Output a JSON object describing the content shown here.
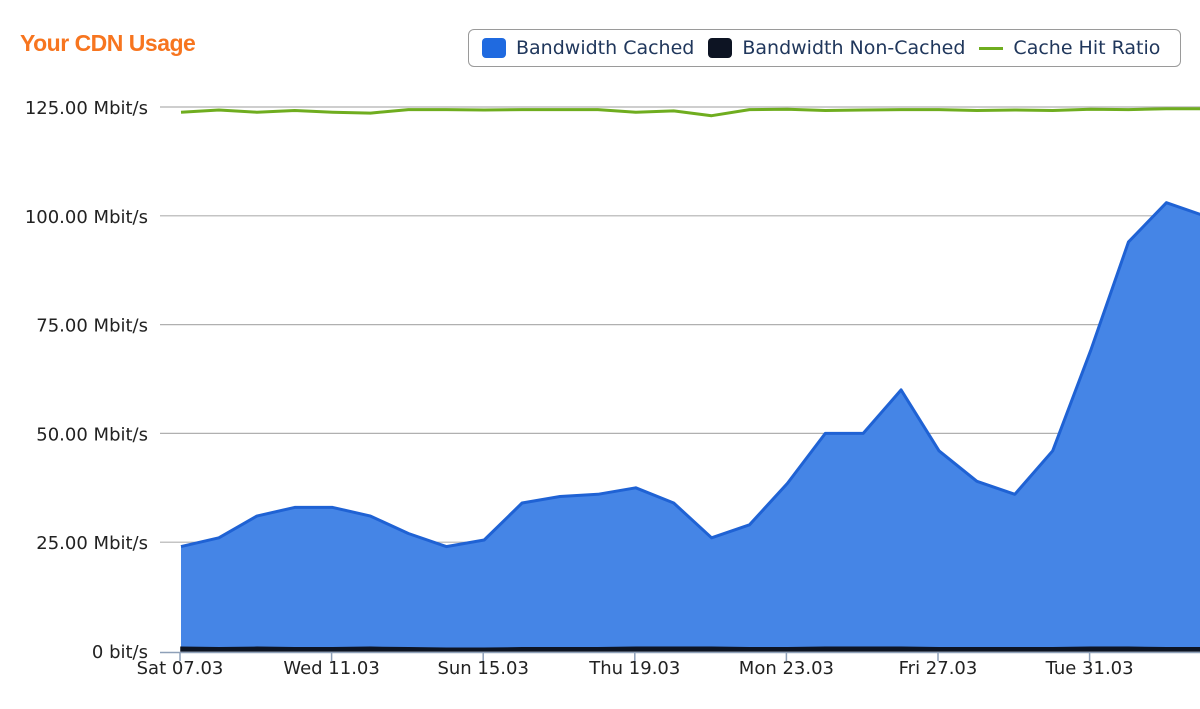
{
  "title": "Your CDN Usage",
  "colors": {
    "title": "#f7751f",
    "cached_fill": "#4585e6",
    "cached_line": "#1f62d4",
    "noncached": "#0d1423",
    "hit_ratio": "#6fad1f",
    "grid": "#b0b0b0"
  },
  "legend": [
    {
      "label": "Bandwidth Cached",
      "kind": "box",
      "color": "#1f6ae0"
    },
    {
      "label": "Bandwidth Non-Cached",
      "kind": "box",
      "color": "#0d1423"
    },
    {
      "label": "Cache Hit Ratio",
      "kind": "line",
      "color": "#6fad1f"
    }
  ],
  "chart_data": {
    "type": "area",
    "title": "Your CDN Usage",
    "y_unit": "Mbit/s",
    "ylim": [
      0,
      125
    ],
    "y_ticks": [
      0,
      25,
      50,
      75,
      100,
      125
    ],
    "y_tick_labels": [
      "0 bit/s",
      "25.00 Mbit/s",
      "50.00 Mbit/s",
      "75.00 Mbit/s",
      "100.00 Mbit/s",
      "125.00 Mbit/s"
    ],
    "x_tick_labels": [
      "Sat 07.03",
      "Wed 11.03",
      "Sun 15.03",
      "Thu 19.03",
      "Mon 23.03",
      "Fri 27.03",
      "Tue 31.03"
    ],
    "x_tick_day_index": [
      0,
      4,
      8,
      12,
      16,
      20,
      24
    ],
    "x": [
      "07.03",
      "08.03",
      "09.03",
      "10.03",
      "11.03",
      "12.03",
      "13.03",
      "14.03",
      "15.03",
      "16.03",
      "17.03",
      "18.03",
      "19.03",
      "20.03",
      "21.03",
      "22.03",
      "23.03",
      "24.03",
      "25.03",
      "26.03",
      "27.03",
      "28.03",
      "29.03",
      "30.03",
      "31.03",
      "01.04",
      "02.04",
      "03.04"
    ],
    "grid": true,
    "legend_position": "top-right",
    "series": [
      {
        "name": "Bandwidth Cached",
        "type": "area",
        "values": [
          24.0,
          26.0,
          31.0,
          33.0,
          33.0,
          31.0,
          27.0,
          24.0,
          25.5,
          34.0,
          35.5,
          36.0,
          37.5,
          34.0,
          26.0,
          29.0,
          38.5,
          50.0,
          50.0,
          60.0,
          46.0,
          39.0,
          36.0,
          46.0,
          69.0,
          94.0,
          103.0,
          100.0
        ]
      },
      {
        "name": "Bandwidth Non-Cached",
        "type": "area",
        "values": [
          0.5,
          0.4,
          0.5,
          0.4,
          0.4,
          0.5,
          0.4,
          0.3,
          0.3,
          0.4,
          0.4,
          0.4,
          0.5,
          0.5,
          0.5,
          0.4,
          0.4,
          0.5,
          0.5,
          0.5,
          0.4,
          0.4,
          0.4,
          0.4,
          0.5,
          0.5,
          0.4,
          0.4
        ]
      },
      {
        "name": "Cache Hit Ratio",
        "type": "line",
        "values": [
          123.8,
          124.3,
          123.8,
          124.2,
          123.8,
          123.6,
          124.4,
          124.4,
          124.3,
          124.4,
          124.4,
          124.4,
          123.8,
          124.1,
          123.0,
          124.4,
          124.5,
          124.2,
          124.3,
          124.4,
          124.4,
          124.2,
          124.3,
          124.2,
          124.5,
          124.4,
          124.6,
          124.6
        ]
      }
    ]
  }
}
